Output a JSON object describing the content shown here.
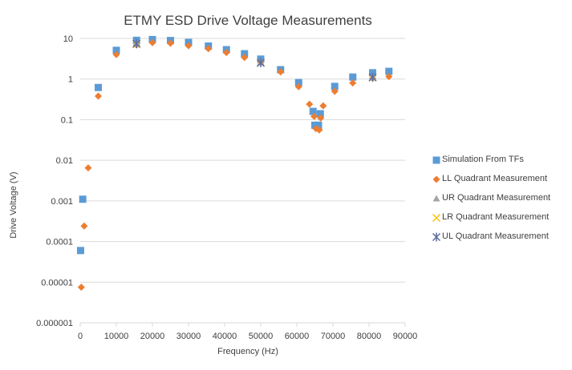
{
  "chart_data": {
    "type": "scatter",
    "title": "ETMY ESD Drive Voltage Measurements",
    "xlabel": "Frequency (Hz)",
    "ylabel": "Drive Voltage (V)",
    "xlim": [
      0,
      90000
    ],
    "ylim": [
      1e-06,
      10
    ],
    "yscale": "log",
    "grid": "horizontal major gridlines",
    "legend_position": "right",
    "x_ticks": [
      "0",
      "10000",
      "20000",
      "30000",
      "40000",
      "50000",
      "60000",
      "70000",
      "80000",
      "90000"
    ],
    "y_ticks": [
      "0.000001",
      "0.00001",
      "0.0001",
      "0.001",
      "0.01",
      "0.1",
      "1",
      "10"
    ],
    "series": [
      {
        "name": "Simulation From TFs",
        "marker": "square",
        "color": "#5B9BD5",
        "points": [
          [
            100,
            6e-05
          ],
          [
            700,
            0.0011
          ],
          [
            5000,
            0.62
          ],
          [
            10000,
            5.1
          ],
          [
            15600,
            9.0
          ],
          [
            20000,
            9.4
          ],
          [
            25000,
            8.9
          ],
          [
            30000,
            8.0
          ],
          [
            35500,
            6.5
          ],
          [
            40500,
            5.3
          ],
          [
            45500,
            4.2
          ],
          [
            50000,
            3.1
          ],
          [
            55500,
            1.7
          ],
          [
            60500,
            0.82
          ],
          [
            64500,
            0.16
          ],
          [
            65000,
            0.073
          ],
          [
            66000,
            0.073
          ],
          [
            66500,
            0.14
          ],
          [
            70500,
            0.66
          ],
          [
            75500,
            1.12
          ],
          [
            81000,
            1.43
          ],
          [
            85500,
            1.55
          ]
        ]
      },
      {
        "name": "LL Quadrant Measurement",
        "marker": "diamond",
        "color": "#ED7D31",
        "points": [
          [
            300,
            7.5e-06
          ],
          [
            1100,
            0.00024
          ],
          [
            2200,
            0.0065
          ],
          [
            5000,
            0.38
          ],
          [
            10000,
            4.0
          ],
          [
            15600,
            6.9
          ],
          [
            20000,
            7.9
          ],
          [
            25000,
            7.6
          ],
          [
            30000,
            6.6
          ],
          [
            35500,
            5.6
          ],
          [
            40500,
            4.5
          ],
          [
            45500,
            3.4
          ],
          [
            50000,
            2.6
          ],
          [
            55500,
            1.5
          ],
          [
            60500,
            0.65
          ],
          [
            63500,
            0.24
          ],
          [
            64800,
            0.12
          ],
          [
            65300,
            0.06
          ],
          [
            66200,
            0.056
          ],
          [
            66600,
            0.11
          ],
          [
            67300,
            0.22
          ],
          [
            70500,
            0.5
          ],
          [
            75500,
            0.8
          ],
          [
            81000,
            1.05
          ],
          [
            85500,
            1.15
          ]
        ]
      },
      {
        "name": "UR Quadrant Measurement",
        "marker": "triangle",
        "color": "#A5A5A5",
        "points": [
          [
            15600,
            7.6
          ],
          [
            50000,
            2.6
          ],
          [
            81000,
            1.1
          ]
        ]
      },
      {
        "name": "LR Quadrant Measurement",
        "marker": "x",
        "color": "#FFC000",
        "points": [
          [
            15600,
            7.2
          ],
          [
            50000,
            2.5
          ],
          [
            81000,
            1.08
          ]
        ]
      },
      {
        "name": "UL Quadrant Measurement",
        "marker": "asterisk",
        "color": "#5B6C9C",
        "points": [
          [
            15600,
            7.4
          ],
          [
            50000,
            2.5
          ],
          [
            81000,
            1.1
          ]
        ]
      }
    ]
  }
}
